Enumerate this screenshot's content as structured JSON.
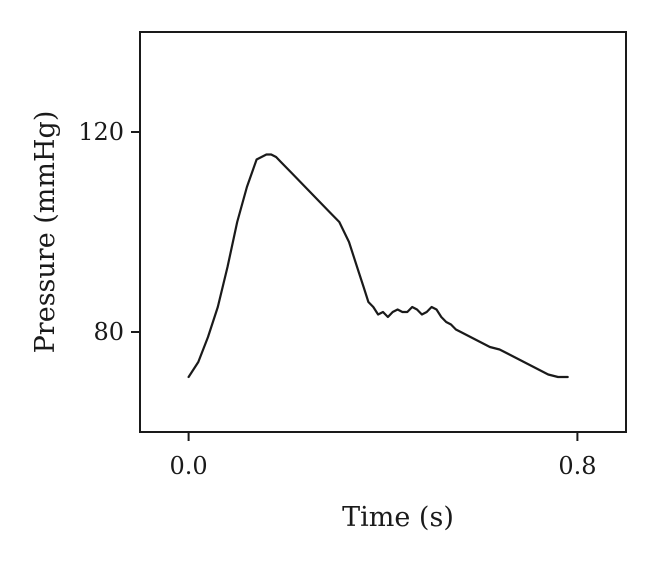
{
  "chart_data": {
    "type": "line",
    "title": "",
    "xlabel": "Time (s)",
    "ylabel": "Pressure (mmHg)",
    "xlim": [
      -0.1,
      0.9
    ],
    "ylim": [
      60,
      140
    ],
    "xticks": [
      0.0,
      0.8
    ],
    "xtick_labels": [
      "0.0",
      "0.8"
    ],
    "yticks": [
      80,
      120
    ],
    "ytick_labels": [
      "80",
      "120"
    ],
    "grid": false,
    "legend": "none",
    "series": [
      {
        "color": "#1a1a1a",
        "x": [
          0.0,
          0.02,
          0.04,
          0.06,
          0.08,
          0.1,
          0.12,
          0.14,
          0.16,
          0.17,
          0.18,
          0.19,
          0.21,
          0.23,
          0.25,
          0.27,
          0.29,
          0.31,
          0.33,
          0.35,
          0.36,
          0.37,
          0.38,
          0.39,
          0.4,
          0.41,
          0.42,
          0.43,
          0.44,
          0.45,
          0.46,
          0.47,
          0.48,
          0.49,
          0.5,
          0.51,
          0.52,
          0.53,
          0.54,
          0.55,
          0.56,
          0.58,
          0.6,
          0.62,
          0.64,
          0.66,
          0.68,
          0.7,
          0.72,
          0.74,
          0.76,
          0.78
        ],
        "y": [
          71,
          74,
          79,
          85,
          93,
          102,
          109,
          114.5,
          115.5,
          115.5,
          115,
          114,
          112,
          110,
          108,
          106,
          104,
          102,
          98,
          92,
          89,
          86,
          85,
          83.5,
          84,
          83,
          84,
          84.5,
          84,
          84,
          85,
          84.5,
          83.5,
          84,
          85,
          84.5,
          83,
          82,
          81.5,
          80.5,
          80,
          79,
          78,
          77,
          76.5,
          75.5,
          74.5,
          73.5,
          72.5,
          71.5,
          71,
          71
        ]
      }
    ]
  }
}
